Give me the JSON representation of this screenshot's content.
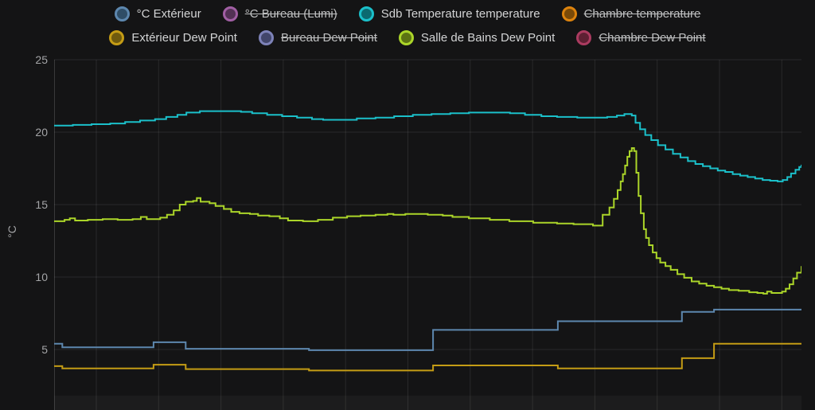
{
  "panel": {
    "background": "#141415",
    "grid_color": "rgba(255,255,255,0.09)",
    "axis_line_color": "rgba(255,255,255,0.16)",
    "bottom_band_color": "rgba(255,255,255,0.035)",
    "tick_text_color": "#a4a5a7",
    "legend_text_color": "#d3d4d5"
  },
  "y_axis": {
    "unit_label": "°C",
    "ticks": [
      "25",
      "20",
      "15",
      "10",
      "5"
    ],
    "tick_values": [
      25,
      20,
      15,
      10,
      5
    ]
  },
  "chart_data": {
    "type": "line",
    "title": "",
    "xlabel": "",
    "ylabel": "°C",
    "x_unit": "percent-of-plot-width (time axis labels not visible in screenshot)",
    "ylim_visible": [
      0.8,
      25.5
    ],
    "grid": true,
    "legend_position": "top",
    "line_style": "step-after",
    "series": [
      {
        "id": "exterieur",
        "name": "°C Extérieur",
        "color": "#5d87ae",
        "dot_fill": "#2f4d66",
        "visible": true,
        "legend_row": 0,
        "points": [
          [
            0,
            5.4
          ],
          [
            1.1,
            5.15
          ],
          [
            13.3,
            5.5
          ],
          [
            17.6,
            5.05
          ],
          [
            34.1,
            4.95
          ],
          [
            50.7,
            6.35
          ],
          [
            67.4,
            6.95
          ],
          [
            84,
            7.6
          ],
          [
            88.3,
            7.75
          ],
          [
            100,
            7.75
          ]
        ]
      },
      {
        "id": "bureau-lumi",
        "name": "°C Bureau (Lumi)",
        "color": "#a15fa4",
        "dot_fill": "#533155",
        "visible": false,
        "legend_row": 0,
        "points": []
      },
      {
        "id": "sdb-temperature",
        "name": "Sdb Temperature temperature",
        "color": "#1bc0ca",
        "dot_fill": "#0b6a70",
        "visible": true,
        "legend_row": 0,
        "points": [
          [
            0,
            20.45
          ],
          [
            2.5,
            20.5
          ],
          [
            5,
            20.55
          ],
          [
            7.5,
            20.6
          ],
          [
            9.5,
            20.7
          ],
          [
            11.5,
            20.8
          ],
          [
            13.5,
            20.9
          ],
          [
            15,
            21.05
          ],
          [
            16.5,
            21.2
          ],
          [
            17.7,
            21.35
          ],
          [
            19.5,
            21.45
          ],
          [
            23,
            21.45
          ],
          [
            25,
            21.4
          ],
          [
            26.5,
            21.3
          ],
          [
            28.5,
            21.2
          ],
          [
            30.5,
            21.1
          ],
          [
            32.5,
            21.0
          ],
          [
            34.5,
            20.9
          ],
          [
            36,
            20.85
          ],
          [
            38.5,
            20.85
          ],
          [
            40.5,
            20.95
          ],
          [
            43,
            21.0
          ],
          [
            45.5,
            21.1
          ],
          [
            48,
            21.2
          ],
          [
            50.5,
            21.25
          ],
          [
            53,
            21.3
          ],
          [
            55.5,
            21.35
          ],
          [
            59,
            21.35
          ],
          [
            61,
            21.3
          ],
          [
            63,
            21.2
          ],
          [
            65.2,
            21.1
          ],
          [
            67.3,
            21.05
          ],
          [
            70,
            21.0
          ],
          [
            72.4,
            21.0
          ],
          [
            74,
            21.05
          ],
          [
            75.3,
            21.15
          ],
          [
            76.3,
            21.25
          ],
          [
            77.3,
            21.15
          ],
          [
            77.8,
            20.65
          ],
          [
            78.4,
            20.2
          ],
          [
            79.1,
            19.8
          ],
          [
            79.9,
            19.45
          ],
          [
            80.8,
            19.1
          ],
          [
            81.8,
            18.8
          ],
          [
            82.8,
            18.5
          ],
          [
            83.8,
            18.25
          ],
          [
            84.8,
            18.0
          ],
          [
            85.8,
            17.8
          ],
          [
            86.8,
            17.65
          ],
          [
            87.8,
            17.5
          ],
          [
            88.8,
            17.35
          ],
          [
            89.8,
            17.25
          ],
          [
            90.8,
            17.1
          ],
          [
            91.8,
            17.0
          ],
          [
            92.8,
            16.9
          ],
          [
            93.8,
            16.8
          ],
          [
            94.8,
            16.7
          ],
          [
            95.8,
            16.65
          ],
          [
            96.8,
            16.6
          ],
          [
            97.5,
            16.7
          ],
          [
            98.1,
            16.9
          ],
          [
            98.6,
            17.15
          ],
          [
            99.2,
            17.4
          ],
          [
            99.7,
            17.6
          ],
          [
            100,
            17.75
          ]
        ]
      },
      {
        "id": "chambre",
        "name": "Chambre temperature",
        "color": "#dd830d",
        "dot_fill": "#7a4a08",
        "visible": false,
        "legend_row": 0,
        "points": []
      },
      {
        "id": "exterieur-dew",
        "name": "Extérieur Dew Point",
        "color": "#c49c15",
        "dot_fill": "#6f5a0e",
        "visible": true,
        "legend_row": 1,
        "points": [
          [
            0,
            3.85
          ],
          [
            1.1,
            3.7
          ],
          [
            13.3,
            3.95
          ],
          [
            17.6,
            3.65
          ],
          [
            34.1,
            3.55
          ],
          [
            50.7,
            3.9
          ],
          [
            67.4,
            3.7
          ],
          [
            84,
            4.4
          ],
          [
            88.3,
            5.4
          ],
          [
            100,
            5.4
          ]
        ]
      },
      {
        "id": "bureau-dew",
        "name": "Bureau Dew Point",
        "color": "#7d82b8",
        "dot_fill": "#42466b",
        "visible": false,
        "legend_row": 1,
        "points": []
      },
      {
        "id": "sdb-dew",
        "name": "Salle de Bains Dew Point",
        "color": "#abd529",
        "dot_fill": "#5c7313",
        "visible": true,
        "legend_row": 1,
        "points": [
          [
            0,
            13.85
          ],
          [
            1.4,
            13.95
          ],
          [
            2.1,
            14.05
          ],
          [
            2.8,
            13.9
          ],
          [
            4.5,
            13.95
          ],
          [
            6.5,
            14.0
          ],
          [
            8.5,
            13.95
          ],
          [
            10.5,
            14.0
          ],
          [
            11.6,
            14.15
          ],
          [
            12.4,
            14.0
          ],
          [
            14.2,
            14.1
          ],
          [
            15.1,
            14.3
          ],
          [
            16,
            14.6
          ],
          [
            16.8,
            15.0
          ],
          [
            17.6,
            15.2
          ],
          [
            18.6,
            15.25
          ],
          [
            19.1,
            15.45
          ],
          [
            19.6,
            15.2
          ],
          [
            20.8,
            15.1
          ],
          [
            21.6,
            14.9
          ],
          [
            22.7,
            14.7
          ],
          [
            23.7,
            14.5
          ],
          [
            24.8,
            14.4
          ],
          [
            26.2,
            14.35
          ],
          [
            27.3,
            14.25
          ],
          [
            28.8,
            14.2
          ],
          [
            30.2,
            14.05
          ],
          [
            31.3,
            13.9
          ],
          [
            33.3,
            13.85
          ],
          [
            35.3,
            13.95
          ],
          [
            37.3,
            14.1
          ],
          [
            39.2,
            14.2
          ],
          [
            41,
            14.25
          ],
          [
            43,
            14.3
          ],
          [
            44.6,
            14.35
          ],
          [
            45.4,
            14.3
          ],
          [
            47,
            14.35
          ],
          [
            48.5,
            14.35
          ],
          [
            50,
            14.3
          ],
          [
            52,
            14.25
          ],
          [
            53.3,
            14.15
          ],
          [
            55.5,
            14.05
          ],
          [
            58.3,
            13.95
          ],
          [
            60.9,
            13.85
          ],
          [
            64.1,
            13.75
          ],
          [
            67.3,
            13.7
          ],
          [
            69.5,
            13.65
          ],
          [
            72.1,
            13.55
          ],
          [
            73.4,
            14.3
          ],
          [
            74.3,
            14.8
          ],
          [
            74.9,
            15.4
          ],
          [
            75.4,
            16.0
          ],
          [
            75.8,
            16.6
          ],
          [
            76.1,
            17.1
          ],
          [
            76.4,
            17.7
          ],
          [
            76.7,
            18.3
          ],
          [
            77.0,
            18.7
          ],
          [
            77.3,
            18.9
          ],
          [
            77.6,
            18.7
          ],
          [
            77.9,
            17.2
          ],
          [
            78.2,
            15.6
          ],
          [
            78.5,
            14.4
          ],
          [
            78.9,
            13.3
          ],
          [
            79.2,
            12.7
          ],
          [
            79.6,
            12.2
          ],
          [
            80.1,
            11.7
          ],
          [
            80.6,
            11.3
          ],
          [
            81.1,
            11.0
          ],
          [
            81.8,
            10.75
          ],
          [
            82.5,
            10.5
          ],
          [
            83.4,
            10.2
          ],
          [
            84.3,
            9.95
          ],
          [
            85.3,
            9.7
          ],
          [
            86.3,
            9.55
          ],
          [
            87.3,
            9.4
          ],
          [
            88.3,
            9.3
          ],
          [
            89.3,
            9.2
          ],
          [
            90.3,
            9.1
          ],
          [
            91.6,
            9.05
          ],
          [
            93,
            8.95
          ],
          [
            94.1,
            8.9
          ],
          [
            94.9,
            8.85
          ],
          [
            95.4,
            9.0
          ],
          [
            96,
            8.9
          ],
          [
            96.8,
            8.9
          ],
          [
            97.4,
            9.0
          ],
          [
            97.9,
            9.2
          ],
          [
            98.4,
            9.5
          ],
          [
            98.9,
            9.9
          ],
          [
            99.4,
            10.3
          ],
          [
            100,
            10.75
          ]
        ]
      },
      {
        "id": "chambre-dew",
        "name": "Chambre Dew Point",
        "color": "#ab3b60",
        "dot_fill": "#5e2033",
        "visible": false,
        "legend_row": 1,
        "points": []
      }
    ]
  }
}
